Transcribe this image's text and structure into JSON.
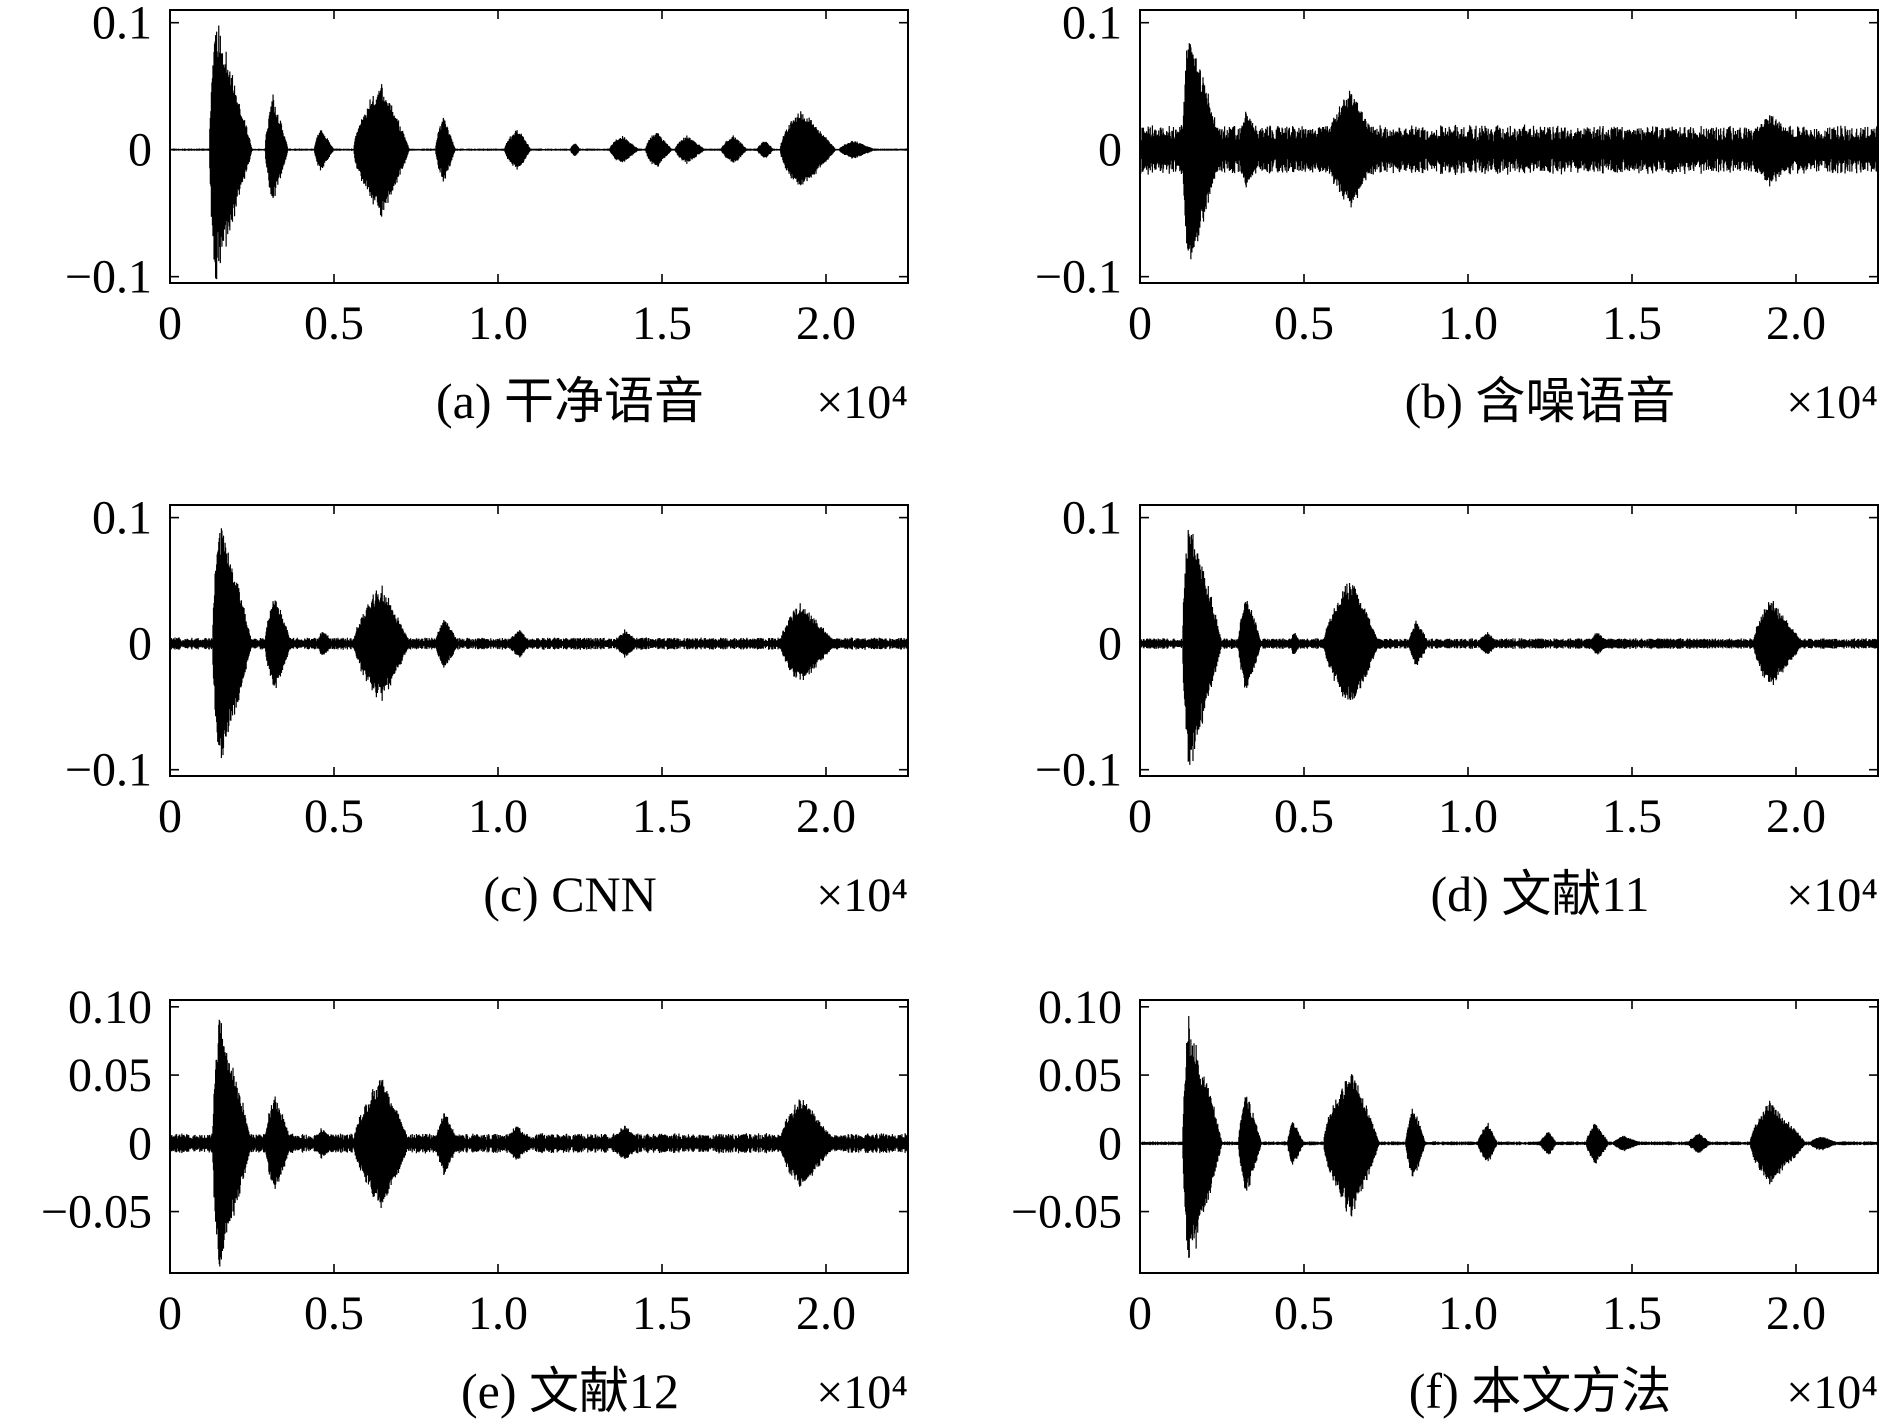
{
  "chart_data": [
    {
      "type": "line",
      "caption": "(a) 干净语音",
      "x_multiplier": "×10⁴",
      "xlim": [
        0,
        2.25
      ],
      "ylim": [
        -0.105,
        0.11
      ],
      "x_ticks": [
        "0",
        "0.5",
        "1.0",
        "1.5",
        "2.0"
      ],
      "x_tick_values": [
        0,
        0.5,
        1.0,
        1.5,
        2.0
      ],
      "y_ticks": [
        "−0.1",
        "0",
        "0.1"
      ],
      "y_tick_values": [
        -0.1,
        0,
        0.1
      ],
      "noise_floor": 0.0008,
      "bursts": [
        {
          "start": 0.12,
          "end": 0.25,
          "amplitude": 0.108,
          "peak": 0.15
        },
        {
          "start": 0.29,
          "end": 0.36,
          "amplitude": 0.045,
          "peak": 0.35
        },
        {
          "start": 0.44,
          "end": 0.5,
          "amplitude": 0.018,
          "peak": 0.3
        },
        {
          "start": 0.56,
          "end": 0.73,
          "amplitude": 0.056,
          "peak": 0.5
        },
        {
          "start": 0.81,
          "end": 0.87,
          "amplitude": 0.028,
          "peak": 0.4
        },
        {
          "start": 1.02,
          "end": 1.1,
          "amplitude": 0.018,
          "peak": 0.5
        },
        {
          "start": 1.22,
          "end": 1.25,
          "amplitude": 0.006,
          "peak": 0.5
        },
        {
          "start": 1.34,
          "end": 1.43,
          "amplitude": 0.012,
          "peak": 0.4
        },
        {
          "start": 1.45,
          "end": 1.53,
          "amplitude": 0.016,
          "peak": 0.4
        },
        {
          "start": 1.54,
          "end": 1.63,
          "amplitude": 0.012,
          "peak": 0.4
        },
        {
          "start": 1.68,
          "end": 1.76,
          "amplitude": 0.012,
          "peak": 0.5
        },
        {
          "start": 1.79,
          "end": 1.84,
          "amplitude": 0.008,
          "peak": 0.5
        },
        {
          "start": 1.86,
          "end": 2.03,
          "amplitude": 0.034,
          "peak": 0.35
        },
        {
          "start": 2.04,
          "end": 2.15,
          "amplitude": 0.008,
          "peak": 0.4
        }
      ]
    },
    {
      "type": "line",
      "caption": "(b) 含噪语音",
      "x_multiplier": "×10⁴",
      "xlim": [
        0,
        2.25
      ],
      "ylim": [
        -0.105,
        0.11
      ],
      "x_ticks": [
        "0",
        "0.5",
        "1.0",
        "1.5",
        "2.0"
      ],
      "x_tick_values": [
        0,
        0.5,
        1.0,
        1.5,
        2.0
      ],
      "y_ticks": [
        "−0.1",
        "0",
        "0.1"
      ],
      "y_tick_values": [
        -0.1,
        0,
        0.1
      ],
      "noise_floor": 0.016,
      "bursts": [
        {
          "start": 0.13,
          "end": 0.25,
          "amplitude": 0.1,
          "peak": 0.15
        },
        {
          "start": 0.3,
          "end": 0.37,
          "amplitude": 0.035,
          "peak": 0.35
        },
        {
          "start": 0.56,
          "end": 0.73,
          "amplitude": 0.05,
          "peak": 0.5
        },
        {
          "start": 1.86,
          "end": 2.03,
          "amplitude": 0.03,
          "peak": 0.35
        }
      ]
    },
    {
      "type": "line",
      "caption": "(c) CNN",
      "x_multiplier": "×10⁴",
      "xlim": [
        0,
        2.25
      ],
      "ylim": [
        -0.105,
        0.11
      ],
      "x_ticks": [
        "0",
        "0.5",
        "1.0",
        "1.5",
        "2.0"
      ],
      "x_tick_values": [
        0,
        0.5,
        1.0,
        1.5,
        2.0
      ],
      "y_ticks": [
        "−0.1",
        "0",
        "0.1"
      ],
      "y_tick_values": [
        -0.1,
        0,
        0.1
      ],
      "noise_floor": 0.004,
      "bursts": [
        {
          "start": 0.13,
          "end": 0.25,
          "amplitude": 0.108,
          "peak": 0.15
        },
        {
          "start": 0.29,
          "end": 0.37,
          "amplitude": 0.042,
          "peak": 0.35
        },
        {
          "start": 0.45,
          "end": 0.5,
          "amplitude": 0.012,
          "peak": 0.3
        },
        {
          "start": 0.56,
          "end": 0.73,
          "amplitude": 0.05,
          "peak": 0.5
        },
        {
          "start": 0.81,
          "end": 0.88,
          "amplitude": 0.022,
          "peak": 0.4
        },
        {
          "start": 1.03,
          "end": 1.1,
          "amplitude": 0.012,
          "peak": 0.5
        },
        {
          "start": 1.36,
          "end": 1.43,
          "amplitude": 0.012,
          "peak": 0.4
        },
        {
          "start": 1.86,
          "end": 2.03,
          "amplitude": 0.034,
          "peak": 0.35
        }
      ]
    },
    {
      "type": "line",
      "caption": "(d) 文献11",
      "x_multiplier": "×10⁴",
      "xlim": [
        0,
        2.25
      ],
      "ylim": [
        -0.105,
        0.11
      ],
      "x_ticks": [
        "0",
        "0.5",
        "1.0",
        "1.5",
        "2.0"
      ],
      "x_tick_values": [
        0,
        0.5,
        1.0,
        1.5,
        2.0
      ],
      "y_ticks": [
        "−0.1",
        "0",
        "0.1"
      ],
      "y_tick_values": [
        -0.1,
        0,
        0.1
      ],
      "noise_floor": 0.0035,
      "bursts": [
        {
          "start": 0.13,
          "end": 0.25,
          "amplitude": 0.108,
          "peak": 0.15
        },
        {
          "start": 0.3,
          "end": 0.37,
          "amplitude": 0.042,
          "peak": 0.35
        },
        {
          "start": 0.46,
          "end": 0.49,
          "amplitude": 0.012,
          "peak": 0.3
        },
        {
          "start": 0.56,
          "end": 0.73,
          "amplitude": 0.054,
          "peak": 0.5
        },
        {
          "start": 0.82,
          "end": 0.88,
          "amplitude": 0.02,
          "peak": 0.4
        },
        {
          "start": 1.03,
          "end": 1.09,
          "amplitude": 0.01,
          "peak": 0.5
        },
        {
          "start": 1.37,
          "end": 1.43,
          "amplitude": 0.01,
          "peak": 0.4
        },
        {
          "start": 1.87,
          "end": 2.02,
          "amplitude": 0.038,
          "peak": 0.35
        }
      ]
    },
    {
      "type": "line",
      "caption": "(e) 文献12",
      "x_multiplier": "×10⁴",
      "xlim": [
        0,
        2.25
      ],
      "ylim": [
        -0.095,
        0.105
      ],
      "x_ticks": [
        "0",
        "0.5",
        "1.0",
        "1.5",
        "2.0"
      ],
      "x_tick_values": [
        0,
        0.5,
        1.0,
        1.5,
        2.0
      ],
      "y_ticks": [
        "−0.05",
        "0",
        "0.05",
        "0.10"
      ],
      "y_tick_values": [
        -0.05,
        0,
        0.05,
        0.1
      ],
      "noise_floor": 0.006,
      "bursts": [
        {
          "start": 0.13,
          "end": 0.25,
          "amplitude": 0.1,
          "peak": 0.15
        },
        {
          "start": 0.29,
          "end": 0.37,
          "amplitude": 0.04,
          "peak": 0.35
        },
        {
          "start": 0.44,
          "end": 0.51,
          "amplitude": 0.012,
          "peak": 0.3
        },
        {
          "start": 0.56,
          "end": 0.73,
          "amplitude": 0.052,
          "peak": 0.5
        },
        {
          "start": 0.81,
          "end": 0.88,
          "amplitude": 0.025,
          "peak": 0.4
        },
        {
          "start": 1.02,
          "end": 1.1,
          "amplitude": 0.014,
          "peak": 0.5
        },
        {
          "start": 1.35,
          "end": 1.44,
          "amplitude": 0.014,
          "peak": 0.4
        },
        {
          "start": 1.86,
          "end": 2.03,
          "amplitude": 0.036,
          "peak": 0.35
        }
      ]
    },
    {
      "type": "line",
      "caption": "(f) 本文方法",
      "x_multiplier": "×10⁴",
      "xlim": [
        0,
        2.25
      ],
      "ylim": [
        -0.095,
        0.105
      ],
      "x_ticks": [
        "0",
        "0.5",
        "1.0",
        "1.5",
        "2.0"
      ],
      "x_tick_values": [
        0,
        0.5,
        1.0,
        1.5,
        2.0
      ],
      "y_ticks": [
        "−0.05",
        "0",
        "0.05",
        "0.10"
      ],
      "y_tick_values": [
        -0.05,
        0,
        0.05,
        0.1
      ],
      "noise_floor": 0.0012,
      "bursts": [
        {
          "start": 0.13,
          "end": 0.25,
          "amplitude": 0.1,
          "peak": 0.15
        },
        {
          "start": 0.3,
          "end": 0.37,
          "amplitude": 0.04,
          "peak": 0.35
        },
        {
          "start": 0.45,
          "end": 0.5,
          "amplitude": 0.018,
          "peak": 0.3
        },
        {
          "start": 0.56,
          "end": 0.73,
          "amplitude": 0.058,
          "peak": 0.5
        },
        {
          "start": 0.81,
          "end": 0.87,
          "amplitude": 0.03,
          "peak": 0.4
        },
        {
          "start": 1.03,
          "end": 1.09,
          "amplitude": 0.016,
          "peak": 0.5
        },
        {
          "start": 1.22,
          "end": 1.27,
          "amplitude": 0.01,
          "peak": 0.5
        },
        {
          "start": 1.36,
          "end": 1.43,
          "amplitude": 0.016,
          "peak": 0.4
        },
        {
          "start": 1.44,
          "end": 1.53,
          "amplitude": 0.006,
          "peak": 0.4
        },
        {
          "start": 1.67,
          "end": 1.74,
          "amplitude": 0.008,
          "peak": 0.5
        },
        {
          "start": 1.86,
          "end": 2.03,
          "amplitude": 0.032,
          "peak": 0.35
        },
        {
          "start": 2.04,
          "end": 2.13,
          "amplitude": 0.006,
          "peak": 0.4
        }
      ]
    }
  ]
}
